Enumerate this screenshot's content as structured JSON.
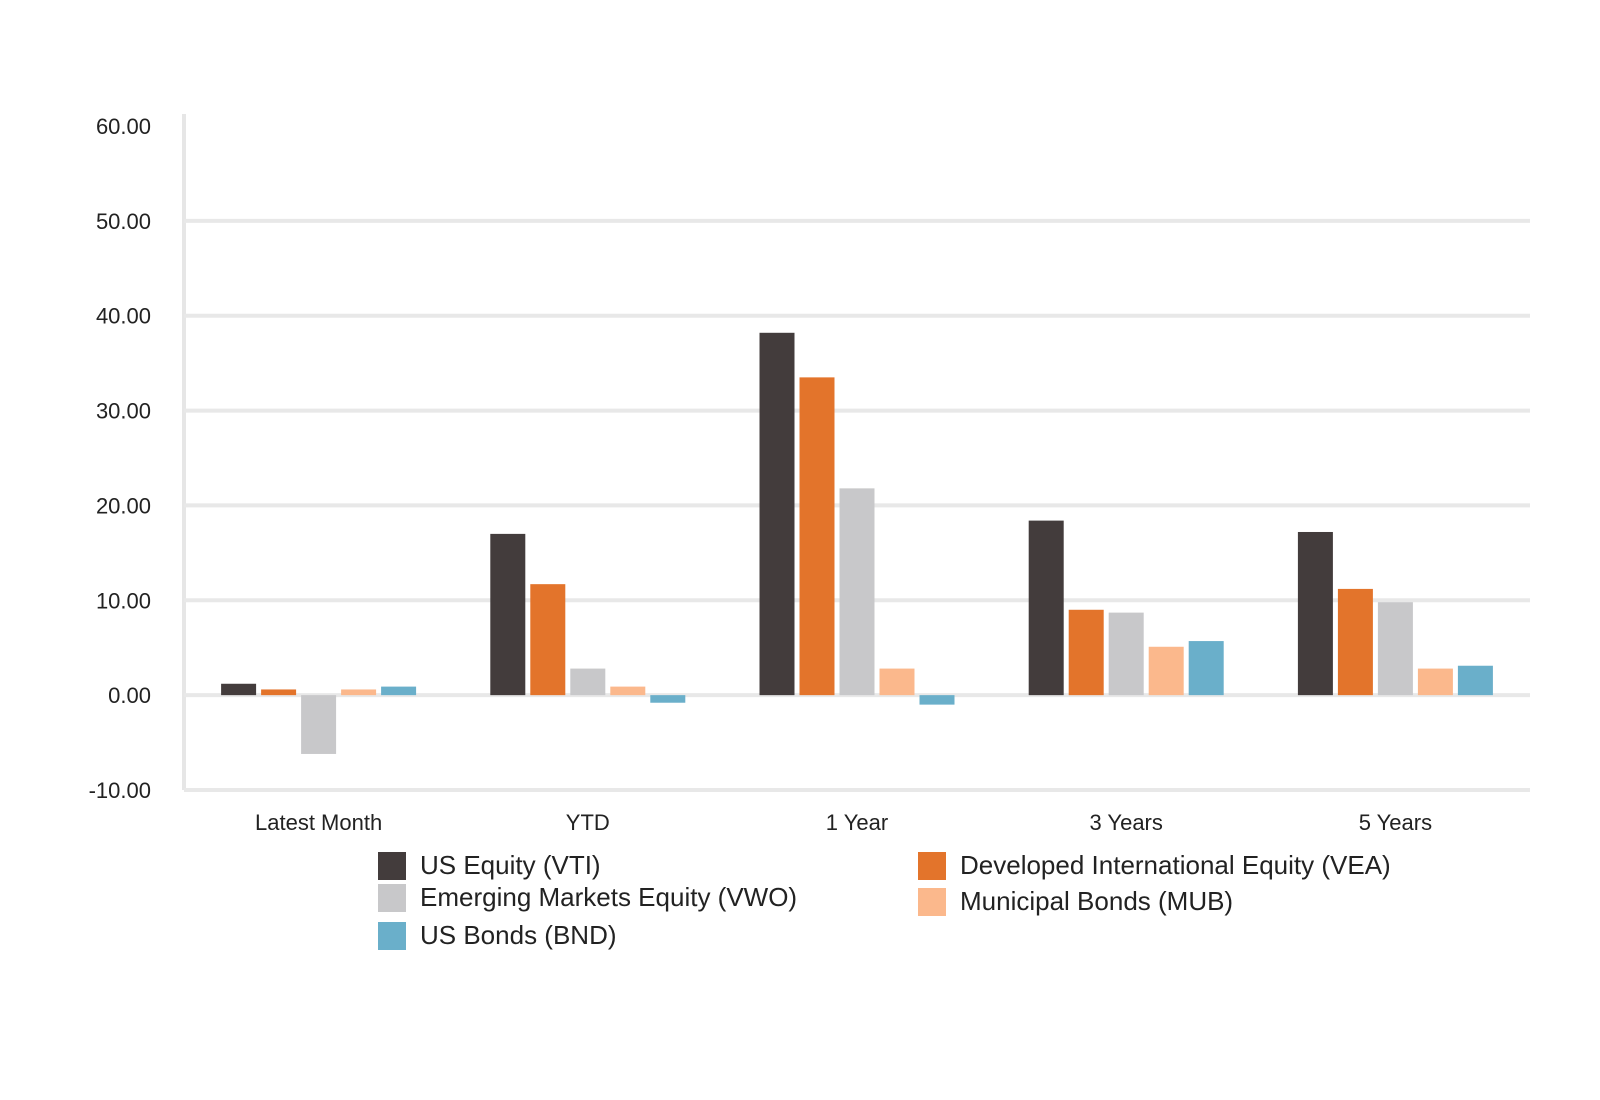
{
  "chart_data": {
    "type": "bar",
    "categories": [
      "Latest Month",
      "YTD",
      "1 Year",
      "3 Years",
      "5 Years"
    ],
    "series": [
      {
        "name": "US Equity (VTI)",
        "color": "#433c3c",
        "values": [
          1.2,
          17.0,
          38.2,
          18.4,
          17.2
        ]
      },
      {
        "name": "Developed International Equity (VEA)",
        "color": "#e3742b",
        "values": [
          0.6,
          11.7,
          33.5,
          9.0,
          11.2
        ]
      },
      {
        "name": "Emerging Markets Equity (VWO)",
        "color": "#c8c8ca",
        "values": [
          -6.2,
          2.8,
          21.8,
          8.7,
          9.8
        ]
      },
      {
        "name": "Municipal Bonds (MUB)",
        "color": "#fbb88c",
        "values": [
          0.6,
          0.9,
          2.8,
          5.1,
          2.8
        ]
      },
      {
        "name": "US Bonds (BND)",
        "color": "#6aafca",
        "values": [
          0.9,
          -0.8,
          -1.0,
          5.7,
          3.1
        ]
      }
    ],
    "yticks": [
      "60.00",
      "50.00",
      "40.00",
      "30.00",
      "20.00",
      "10.00",
      "0.00",
      "-10.00"
    ],
    "ylim": [
      -10,
      60
    ],
    "grid": true,
    "legend_position": "bottom"
  }
}
